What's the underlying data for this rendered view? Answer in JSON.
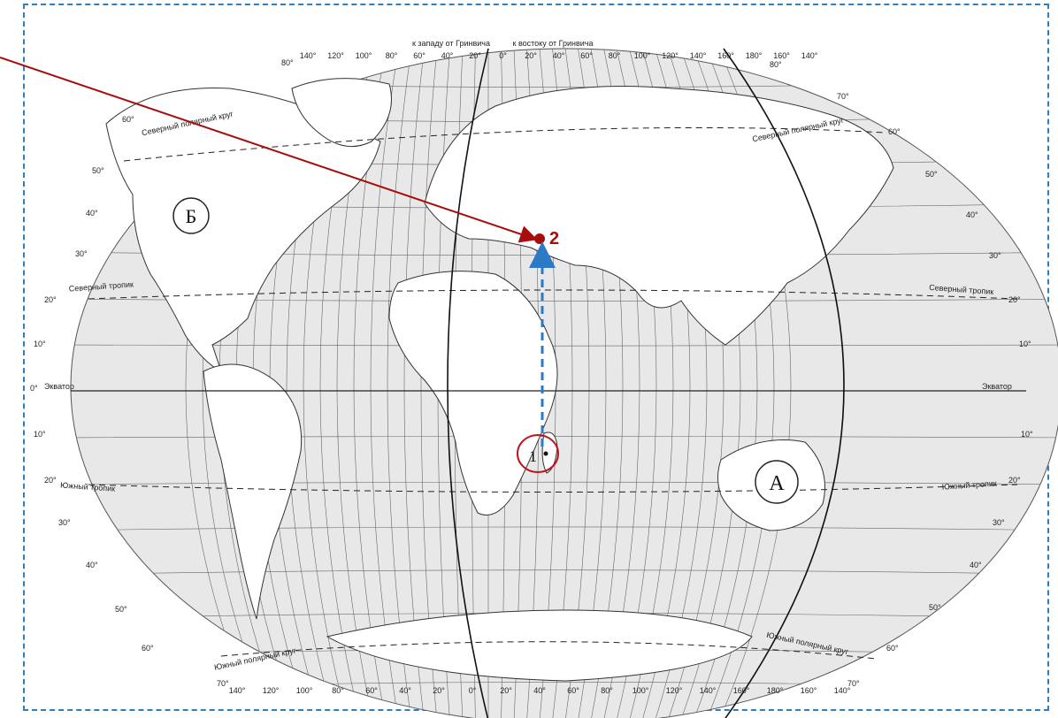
{
  "header": {
    "west_label": "к западу от Гринвича",
    "east_label": "к востоку от Гринвича"
  },
  "top_scale": [
    "140°",
    "120°",
    "100°",
    "80°",
    "60°",
    "40°",
    "20°",
    "0°",
    "20°",
    "40°",
    "60°",
    "80°",
    "100°",
    "120°",
    "140°",
    "160°",
    "180°",
    "160°",
    "140°"
  ],
  "bottom_scale": [
    "140°",
    "120°",
    "100°",
    "80°",
    "60°",
    "40°",
    "20°",
    "0°",
    "20°",
    "40°",
    "60°",
    "80°",
    "100°",
    "120°",
    "140°",
    "160°",
    "180°",
    "160°",
    "140°"
  ],
  "lat_left": [
    "80°",
    "60°",
    "50°",
    "40°",
    "30°",
    "20°",
    "10°",
    "0°",
    "10°",
    "20°",
    "30°",
    "40°",
    "50°",
    "60°",
    "70°"
  ],
  "lat_right": [
    "80°",
    "70°",
    "60°",
    "50°",
    "40°",
    "30°",
    "20°",
    "10°",
    "10°",
    "20°",
    "30°",
    "40°",
    "50°",
    "60°",
    "70°"
  ],
  "parallels": {
    "arctic_left": "Северный полярный круг",
    "arctic_right": "Северный полярный круг",
    "tropic_cancer_left": "Северный тропик",
    "tropic_cancer_right": "Северный тропик",
    "equator_left": "Экватор",
    "equator_right": "Экватор",
    "tropic_capricorn_left": "Южный тропик",
    "tropic_capricorn_right": "Южный тропик",
    "antarctic_left": "Южный полярный круг",
    "antarctic_right": "Южный полярный круг"
  },
  "markers": {
    "a": "А",
    "b": "Б",
    "point1": "1",
    "point2": "2"
  },
  "colors": {
    "frame": "#2e7fc0",
    "arrow_red": "#a80d0d",
    "arrow_blue": "#2b7ac6",
    "ocean": "#e8e8e8",
    "land": "#ffffff"
  }
}
